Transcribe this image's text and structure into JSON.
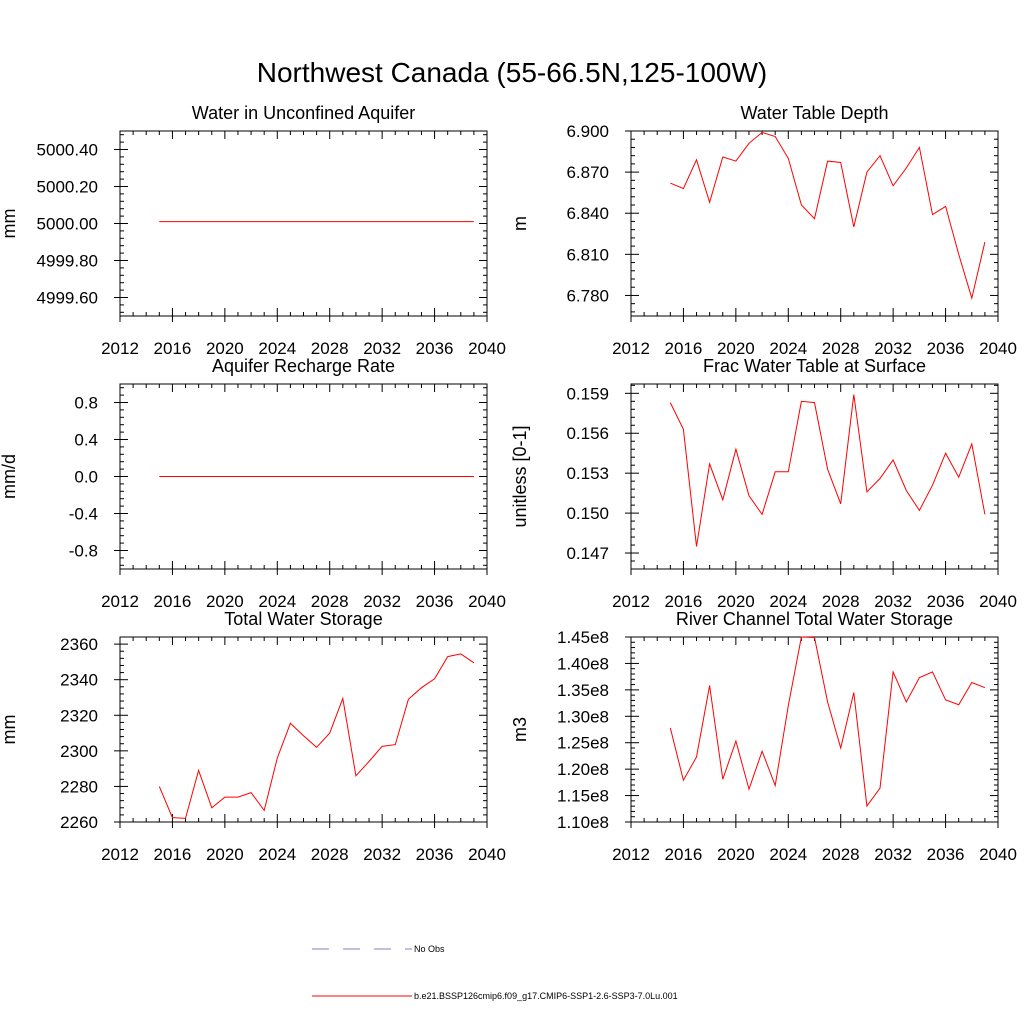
{
  "figure_title": "Northwest Canada (55-66.5N,125-100W)",
  "colors": {
    "model_line": "#ff0000",
    "obs_line": "#8080c0",
    "axis": "#000000"
  },
  "legend": {
    "obs_label": "No Obs",
    "model_label": "b.e21.BSSP126cmip6.f09_g17.CMIP6-SSP1-2.6-SSP3-7.0Lu.001"
  },
  "chart_data": [
    {
      "type": "line",
      "title": "Water in Unconfined Aquifer",
      "xlabel": "",
      "ylabel": "mm",
      "xlim": [
        2012,
        2040
      ],
      "xticks": [
        "2012",
        "2016",
        "2020",
        "2024",
        "2028",
        "2032",
        "2036",
        "2040"
      ],
      "ylim": [
        4999.5,
        5000.5
      ],
      "yticks": [
        "4999.60",
        "4999.80",
        "5000.00",
        "5000.20",
        "5000.40"
      ],
      "x": [
        2015,
        2016,
        2017,
        2018,
        2019,
        2020,
        2021,
        2022,
        2023,
        2024,
        2025,
        2026,
        2027,
        2028,
        2029,
        2030,
        2031,
        2032,
        2033,
        2034,
        2035,
        2036,
        2037,
        2038,
        2039
      ],
      "series": [
        {
          "name": "b.e21.BSSP126cmip6.f09_g17.CMIP6-SSP1-2.6-SSP3-7.0Lu.001",
          "values": [
            5000.01,
            5000.01,
            5000.01,
            5000.01,
            5000.01,
            5000.01,
            5000.01,
            5000.01,
            5000.01,
            5000.01,
            5000.01,
            5000.01,
            5000.01,
            5000.01,
            5000.01,
            5000.01,
            5000.01,
            5000.01,
            5000.01,
            5000.01,
            5000.01,
            5000.01,
            5000.01,
            5000.01,
            5000.01
          ]
        }
      ]
    },
    {
      "type": "line",
      "title": "Water Table Depth",
      "xlabel": "",
      "ylabel": "m",
      "xlim": [
        2012,
        2040
      ],
      "xticks": [
        "2012",
        "2016",
        "2020",
        "2024",
        "2028",
        "2032",
        "2036",
        "2040"
      ],
      "ylim": [
        6.765,
        6.9
      ],
      "yticks": [
        "6.780",
        "6.810",
        "6.840",
        "6.870",
        "6.900"
      ],
      "x": [
        2015,
        2016,
        2017,
        2018,
        2019,
        2020,
        2021,
        2022,
        2023,
        2024,
        2025,
        2026,
        2027,
        2028,
        2029,
        2030,
        2031,
        2032,
        2033,
        2034,
        2035,
        2036,
        2037,
        2038,
        2039
      ],
      "series": [
        {
          "name": "b.e21.BSSP126cmip6.f09_g17.CMIP6-SSP1-2.6-SSP3-7.0Lu.001",
          "values": [
            6.862,
            6.858,
            6.879,
            6.848,
            6.881,
            6.878,
            6.891,
            6.899,
            6.896,
            6.88,
            6.846,
            6.836,
            6.878,
            6.877,
            6.83,
            6.87,
            6.882,
            6.86,
            6.873,
            6.888,
            6.839,
            6.845,
            6.81,
            6.778,
            6.819
          ]
        }
      ]
    },
    {
      "type": "line",
      "title": "Aquifer Recharge Rate",
      "xlabel": "",
      "ylabel": "mm/d",
      "xlim": [
        2012,
        2040
      ],
      "xticks": [
        "2012",
        "2016",
        "2020",
        "2024",
        "2028",
        "2032",
        "2036",
        "2040"
      ],
      "ylim": [
        -1.0,
        1.0
      ],
      "yticks": [
        "-0.8",
        "-0.4",
        "0.0",
        "0.4",
        "0.8"
      ],
      "x": [
        2015,
        2016,
        2017,
        2018,
        2019,
        2020,
        2021,
        2022,
        2023,
        2024,
        2025,
        2026,
        2027,
        2028,
        2029,
        2030,
        2031,
        2032,
        2033,
        2034,
        2035,
        2036,
        2037,
        2038,
        2039
      ],
      "series": [
        {
          "name": "b.e21.BSSP126cmip6.f09_g17.CMIP6-SSP1-2.6-SSP3-7.0Lu.001",
          "values": [
            0,
            0,
            0,
            0,
            0,
            0,
            0,
            0,
            0,
            0,
            0,
            0,
            0,
            0,
            0,
            0,
            0,
            0,
            0,
            0,
            0,
            0,
            0,
            0,
            0
          ]
        }
      ]
    },
    {
      "type": "line",
      "title": "Frac Water Table at Surface",
      "xlabel": "",
      "ylabel": "unitless [0-1]",
      "xlim": [
        2012,
        2040
      ],
      "xticks": [
        "2012",
        "2016",
        "2020",
        "2024",
        "2028",
        "2032",
        "2036",
        "2040"
      ],
      "ylim": [
        0.1458,
        0.1597
      ],
      "yticks": [
        "0.147",
        "0.150",
        "0.153",
        "0.156",
        "0.159"
      ],
      "x": [
        2015,
        2016,
        2017,
        2018,
        2019,
        2020,
        2021,
        2022,
        2023,
        2024,
        2025,
        2026,
        2027,
        2028,
        2029,
        2030,
        2031,
        2032,
        2033,
        2034,
        2035,
        2036,
        2037,
        2038,
        2039
      ],
      "series": [
        {
          "name": "b.e21.BSSP126cmip6.f09_g17.CMIP6-SSP1-2.6-SSP3-7.0Lu.001",
          "values": [
            0.1583,
            0.1563,
            0.1475,
            0.1537,
            0.151,
            0.1548,
            0.1513,
            0.1499,
            0.1531,
            0.1531,
            0.1584,
            0.1583,
            0.1533,
            0.1507,
            0.1589,
            0.1516,
            0.1526,
            0.154,
            0.1517,
            0.1502,
            0.1521,
            0.1545,
            0.1527,
            0.1552,
            0.1499
          ]
        }
      ]
    },
    {
      "type": "line",
      "title": "Total Water Storage",
      "xlabel": "",
      "ylabel": "mm",
      "xlim": [
        2012,
        2040
      ],
      "xticks": [
        "2012",
        "2016",
        "2020",
        "2024",
        "2028",
        "2032",
        "2036",
        "2040"
      ],
      "ylim": [
        2260,
        2364
      ],
      "yticks": [
        "2260",
        "2280",
        "2300",
        "2320",
        "2340",
        "2360"
      ],
      "x": [
        2015,
        2016,
        2017,
        2018,
        2019,
        2020,
        2021,
        2022,
        2023,
        2024,
        2025,
        2026,
        2027,
        2028,
        2029,
        2030,
        2031,
        2032,
        2033,
        2034,
        2035,
        2036,
        2037,
        2038,
        2039
      ],
      "series": [
        {
          "name": "b.e21.BSSP126cmip6.f09_g17.CMIP6-SSP1-2.6-SSP3-7.0Lu.001",
          "values": [
            2280,
            2262.5,
            2262,
            2289,
            2268,
            2274,
            2274,
            2276.5,
            2266.5,
            2296,
            2315.5,
            2308.5,
            2302,
            2310,
            2329.5,
            2286,
            2294,
            2302.5,
            2303.5,
            2329,
            2335.5,
            2340.5,
            2353,
            2354.5,
            2349.5
          ]
        }
      ]
    },
    {
      "type": "line",
      "title": "River Channel Total Water Storage",
      "xlabel": "",
      "ylabel": "m3",
      "xlim": [
        2012,
        2040
      ],
      "xticks": [
        "2012",
        "2016",
        "2020",
        "2024",
        "2028",
        "2032",
        "2036",
        "2040"
      ],
      "ylim": [
        110000000,
        145000000
      ],
      "yticks": [
        "1.10e8",
        "1.15e8",
        "1.20e8",
        "1.25e8",
        "1.30e8",
        "1.35e8",
        "1.40e8",
        "1.45e8"
      ],
      "x": [
        2015,
        2016,
        2017,
        2018,
        2019,
        2020,
        2021,
        2022,
        2023,
        2024,
        2025,
        2026,
        2027,
        2028,
        2029,
        2030,
        2031,
        2032,
        2033,
        2034,
        2035,
        2036,
        2037,
        2038,
        2039
      ],
      "series": [
        {
          "name": "b.e21.BSSP126cmip6.f09_g17.CMIP6-SSP1-2.6-SSP3-7.0Lu.001",
          "values": [
            127800000,
            117900000,
            122300000,
            135800000,
            118100000,
            125300000,
            116200000,
            123400000,
            116900000,
            132000000,
            145000000,
            144900000,
            132700000,
            124000000,
            134500000,
            113000000,
            116400000,
            138400000,
            132700000,
            137300000,
            138400000,
            133100000,
            132200000,
            136400000,
            135400000
          ]
        }
      ]
    }
  ]
}
